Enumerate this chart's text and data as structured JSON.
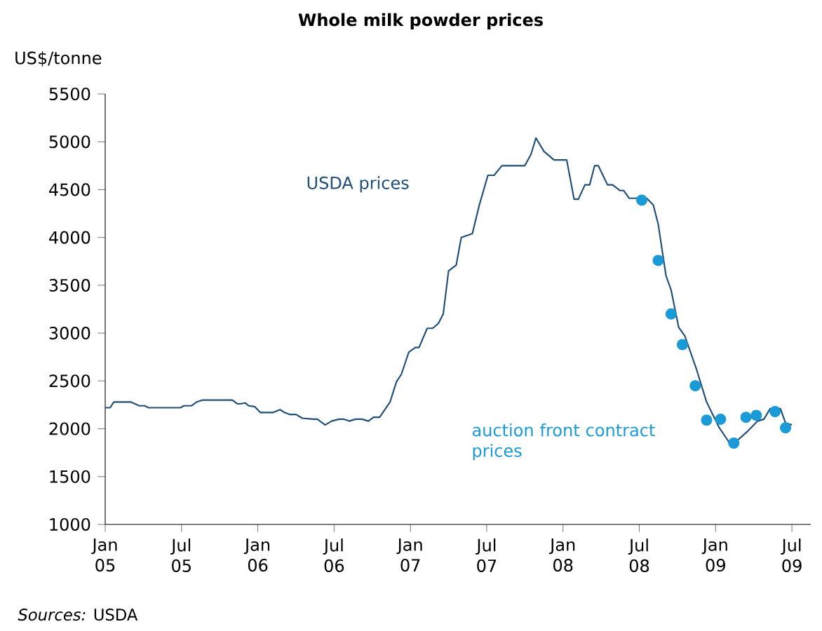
{
  "chart_data": {
    "type": "line",
    "title": "Whole milk powder prices",
    "ylabel": "US$/tonne",
    "annotations": [
      "*Sources:* USDA"
    ],
    "xlim": [
      "2005-01-01",
      "2009-08-16"
    ],
    "xticks": [
      {
        "value": "2005-01",
        "label": "Jan 05"
      },
      {
        "value": "2005-07",
        "label": "Jul 05"
      },
      {
        "value": "2006-01",
        "label": "Jan 06"
      },
      {
        "value": "2006-07",
        "label": "Jul 06"
      },
      {
        "value": "2007-01",
        "label": "Jan 07"
      },
      {
        "value": "2007-07",
        "label": "Jul 07"
      },
      {
        "value": "2008-01",
        "label": "Jan 08"
      },
      {
        "value": "2008-07",
        "label": "Jul 08"
      },
      {
        "value": "2009-01",
        "label": "Jan 09"
      },
      {
        "value": "2009-07",
        "label": "Jul 09"
      }
    ],
    "ylim": [
      1000,
      5500
    ],
    "yticks": [
      1000,
      1500,
      2000,
      2500,
      3000,
      3500,
      4000,
      4500,
      5000,
      5500
    ],
    "grid": false,
    "legend": false,
    "series": [
      {
        "name": "USDA prices",
        "color": "#1f4e79",
        "x": [
          "2005-01-01",
          "2005-01-13",
          "2005-01-22",
          "2005-03-01",
          "2005-03-22",
          "2005-04-04",
          "2005-04-13",
          "2005-06-28",
          "2005-07-07",
          "2005-07-25",
          "2005-08-07",
          "2005-08-22",
          "2005-11-01",
          "2005-11-13",
          "2005-11-19",
          "2005-12-01",
          "2005-12-10",
          "2005-12-25",
          "2006-01-07",
          "2006-02-07",
          "2006-02-22",
          "2006-03-04",
          "2006-03-16",
          "2006-04-01",
          "2006-04-16",
          "2006-05-13",
          "2006-05-22",
          "2006-06-10",
          "2006-06-25",
          "2006-07-13",
          "2006-07-25",
          "2006-08-07",
          "2006-08-22",
          "2006-09-07",
          "2006-09-22",
          "2006-10-04",
          "2006-10-19",
          "2006-11-13",
          "2006-11-28",
          "2006-12-10",
          "2006-12-28",
          "2007-01-13",
          "2007-01-22",
          "2007-02-10",
          "2007-02-22",
          "2007-03-07",
          "2007-03-19",
          "2007-04-01",
          "2007-04-19",
          "2007-05-01",
          "2007-05-28",
          "2007-06-13",
          "2007-07-04",
          "2007-07-19",
          "2007-08-07",
          "2007-10-01",
          "2007-10-16",
          "2007-10-28",
          "2007-11-16",
          "2007-12-10",
          "2008-01-10",
          "2008-01-28",
          "2008-02-07",
          "2008-02-22",
          "2008-03-04",
          "2008-03-16",
          "2008-03-25",
          "2008-04-16",
          "2008-04-28",
          "2008-05-16",
          "2008-05-25",
          "2008-06-07",
          "2008-07-19",
          "2008-08-04",
          "2008-08-16",
          "2008-09-04",
          "2008-09-16",
          "2008-10-04",
          "2008-10-19",
          "2008-11-16",
          "2008-12-10",
          "2009-01-10",
          "2009-02-04",
          "2009-02-19",
          "2009-03-16",
          "2009-04-10",
          "2009-04-25",
          "2009-05-10",
          "2009-06-04",
          "2009-06-16",
          "2009-07-01"
        ],
        "values": [
          2220,
          2220,
          2280,
          2280,
          2240,
          2240,
          2220,
          2220,
          2240,
          2240,
          2280,
          2300,
          2300,
          2260,
          2260,
          2270,
          2240,
          2230,
          2170,
          2170,
          2200,
          2170,
          2150,
          2150,
          2110,
          2100,
          2100,
          2040,
          2080,
          2100,
          2100,
          2080,
          2100,
          2100,
          2080,
          2120,
          2120,
          2280,
          2490,
          2570,
          2800,
          2850,
          2850,
          3050,
          3050,
          3100,
          3200,
          3650,
          3710,
          4000,
          4040,
          4330,
          4650,
          4650,
          4750,
          4750,
          4870,
          5040,
          4900,
          4810,
          4810,
          4400,
          4400,
          4550,
          4550,
          4750,
          4750,
          4550,
          4550,
          4490,
          4490,
          4410,
          4410,
          4340,
          4140,
          3600,
          3450,
          3060,
          2970,
          2620,
          2280,
          2010,
          1850,
          1870,
          1970,
          2080,
          2100,
          2210,
          2210,
          2060,
          2040
        ]
      },
      {
        "name": "auction front contract prices",
        "type": "scatter",
        "color": "#1a9ad6",
        "x": [
          "2008-07-07",
          "2008-08-16",
          "2008-09-16",
          "2008-10-13",
          "2008-11-13",
          "2008-12-10",
          "2009-01-13",
          "2009-02-13",
          "2009-03-13",
          "2009-04-07",
          "2009-05-22",
          "2009-06-16"
        ],
        "values": [
          4390,
          3760,
          3200,
          2880,
          2450,
          2090,
          2100,
          1850,
          2120,
          2140,
          2180,
          2010
        ]
      }
    ]
  }
}
